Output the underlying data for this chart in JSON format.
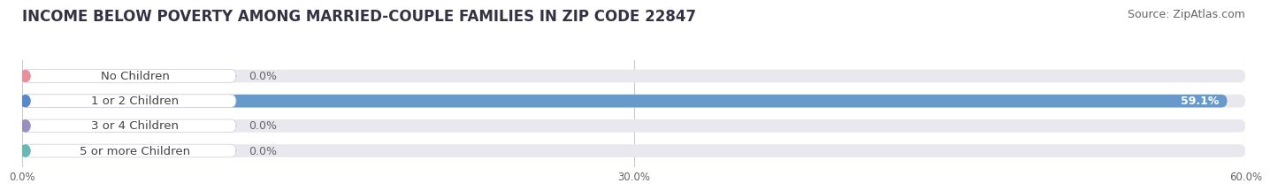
{
  "title": "INCOME BELOW POVERTY AMONG MARRIED-COUPLE FAMILIES IN ZIP CODE 22847",
  "source": "Source: ZipAtlas.com",
  "categories": [
    "No Children",
    "1 or 2 Children",
    "3 or 4 Children",
    "5 or more Children"
  ],
  "values": [
    0.0,
    59.1,
    0.0,
    0.0
  ],
  "bar_colors": [
    "#e8919a",
    "#6699cc",
    "#b39ddb",
    "#7dc8c4"
  ],
  "label_left_colors": [
    "#e8919a",
    "#5588cc",
    "#9b8fc0",
    "#6ab8b4"
  ],
  "xlim": [
    0,
    60
  ],
  "xticks": [
    0,
    30,
    60
  ],
  "xtick_labels": [
    "0.0%",
    "30.0%",
    "60.0%"
  ],
  "background_color": "#ffffff",
  "bar_bg_color": "#e8e8ee",
  "label_bg_color": "#f0f0f8",
  "title_fontsize": 12,
  "source_fontsize": 9,
  "label_fontsize": 9.5,
  "value_fontsize": 9
}
